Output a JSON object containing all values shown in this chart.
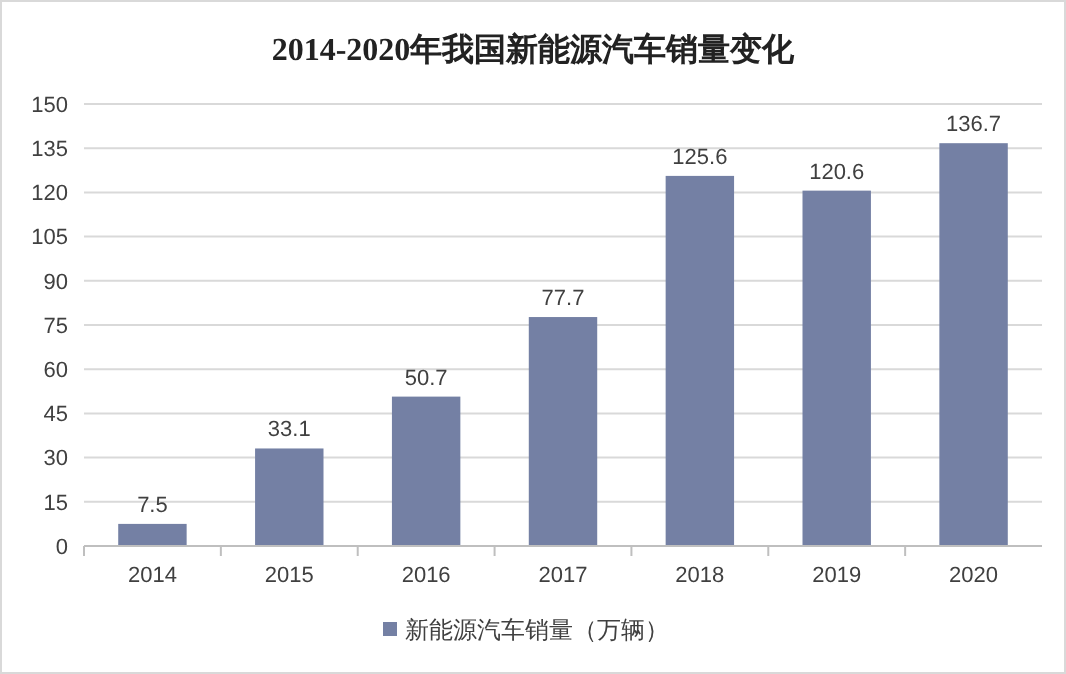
{
  "chart_data": {
    "type": "bar",
    "title": "2014-2020年我国新能源汽车销量变化",
    "categories": [
      "2014",
      "2015",
      "2016",
      "2017",
      "2018",
      "2019",
      "2020"
    ],
    "series": [
      {
        "name": "新能源汽车销量（万辆）",
        "color": "#7480a4",
        "values": [
          7.5,
          33.1,
          50.7,
          77.7,
          125.6,
          120.6,
          136.7
        ]
      }
    ],
    "ylim": [
      0,
      150
    ],
    "yticks": [
      0,
      15,
      30,
      45,
      60,
      75,
      90,
      105,
      120,
      135,
      150
    ],
    "grid": "y",
    "legend": "bottom",
    "data_labels": true
  }
}
